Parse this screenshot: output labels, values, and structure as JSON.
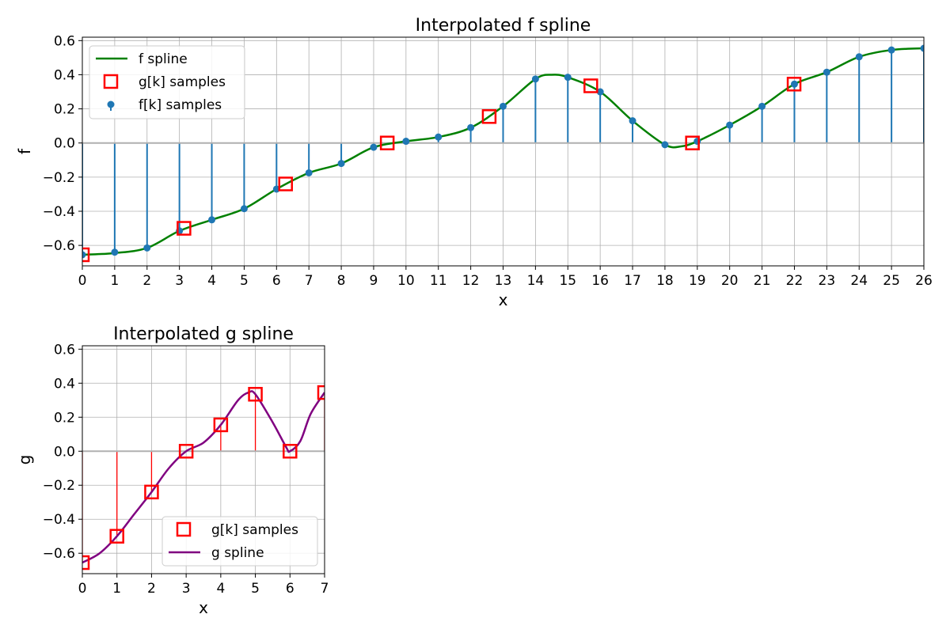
{
  "chart_data": [
    {
      "type": "line",
      "title": "Interpolated f spline",
      "xlabel": "x",
      "ylabel": "f",
      "xlim": [
        0,
        26
      ],
      "ylim": [
        -0.72,
        0.62
      ],
      "xticks": [
        "0",
        "1",
        "2",
        "3",
        "4",
        "5",
        "6",
        "7",
        "8",
        "9",
        "10",
        "11",
        "12",
        "13",
        "14",
        "15",
        "16",
        "17",
        "18",
        "19",
        "20",
        "21",
        "22",
        "23",
        "24",
        "25",
        "26"
      ],
      "yticks": [
        "−0.6",
        "−0.4",
        "−0.2",
        "0.0",
        "0.2",
        "0.4",
        "0.6"
      ],
      "ytick_values": [
        -0.6,
        -0.4,
        -0.2,
        0.0,
        0.2,
        0.4,
        0.6
      ],
      "grid": true,
      "legend": "upper-left",
      "series": [
        {
          "name": "f spline",
          "kind": "line",
          "color": "#008000",
          "x": [
            0,
            1,
            2,
            3,
            4,
            5,
            6,
            7,
            8,
            9,
            10,
            11,
            12,
            13,
            14,
            14.5,
            15,
            16,
            17,
            18,
            18.5,
            19,
            20,
            21,
            22,
            23,
            24,
            25,
            26
          ],
          "y": [
            -0.655,
            -0.645,
            -0.615,
            -0.515,
            -0.45,
            -0.385,
            -0.27,
            -0.175,
            -0.12,
            -0.025,
            0.01,
            0.035,
            0.09,
            0.215,
            0.375,
            0.4,
            0.385,
            0.3,
            0.13,
            -0.01,
            -0.02,
            0.01,
            0.105,
            0.215,
            0.345,
            0.415,
            0.505,
            0.545,
            0.555
          ]
        },
        {
          "name": "g[k] samples",
          "kind": "square-markers",
          "color": "#ff0000",
          "x": [
            0,
            3.14,
            6.28,
            9.42,
            12.57,
            15.71,
            18.85,
            21.99
          ],
          "y": [
            -0.655,
            -0.5,
            -0.24,
            0.0,
            0.155,
            0.335,
            0.0,
            0.345
          ]
        },
        {
          "name": "f[k] samples",
          "kind": "stem",
          "color": "#1f77b4",
          "x": [
            0,
            1,
            2,
            3,
            4,
            5,
            6,
            7,
            8,
            9,
            10,
            11,
            12,
            13,
            14,
            15,
            16,
            17,
            18,
            19,
            20,
            21,
            22,
            23,
            24,
            25,
            26
          ],
          "y": [
            -0.655,
            -0.64,
            -0.615,
            -0.515,
            -0.45,
            -0.385,
            -0.27,
            -0.175,
            -0.12,
            -0.025,
            0.01,
            0.035,
            0.09,
            0.215,
            0.375,
            0.385,
            0.3,
            0.13,
            -0.01,
            0.01,
            0.105,
            0.215,
            0.345,
            0.415,
            0.505,
            0.545,
            0.555
          ]
        }
      ]
    },
    {
      "type": "line",
      "title": "Interpolated g spline",
      "xlabel": "x",
      "ylabel": "g",
      "xlim": [
        0,
        7
      ],
      "ylim": [
        -0.72,
        0.62
      ],
      "xticks": [
        "0",
        "1",
        "2",
        "3",
        "4",
        "5",
        "6",
        "7"
      ],
      "yticks": [
        "−0.6",
        "−0.4",
        "−0.2",
        "0.0",
        "0.2",
        "0.4",
        "0.6"
      ],
      "ytick_values": [
        -0.6,
        -0.4,
        -0.2,
        0.0,
        0.2,
        0.4,
        0.6
      ],
      "grid": true,
      "legend": "lower-right",
      "series": [
        {
          "name": "g[k] samples",
          "kind": "stem-square",
          "color": "#ff0000",
          "x": [
            0,
            1,
            2,
            3,
            4,
            5,
            6,
            7
          ],
          "y": [
            -0.655,
            -0.5,
            -0.24,
            0.0,
            0.155,
            0.335,
            0.0,
            0.345
          ]
        },
        {
          "name": "g spline",
          "kind": "line",
          "color": "#800080",
          "x": [
            0,
            0.5,
            1,
            1.5,
            2,
            2.5,
            3,
            3.5,
            4,
            4.5,
            4.8,
            5,
            5.5,
            5.9,
            6,
            6.3,
            6.6,
            7
          ],
          "y": [
            -0.655,
            -0.6,
            -0.5,
            -0.37,
            -0.24,
            -0.1,
            0.0,
            0.05,
            0.155,
            0.3,
            0.345,
            0.335,
            0.17,
            0.02,
            0.0,
            0.06,
            0.22,
            0.345
          ]
        }
      ]
    }
  ]
}
